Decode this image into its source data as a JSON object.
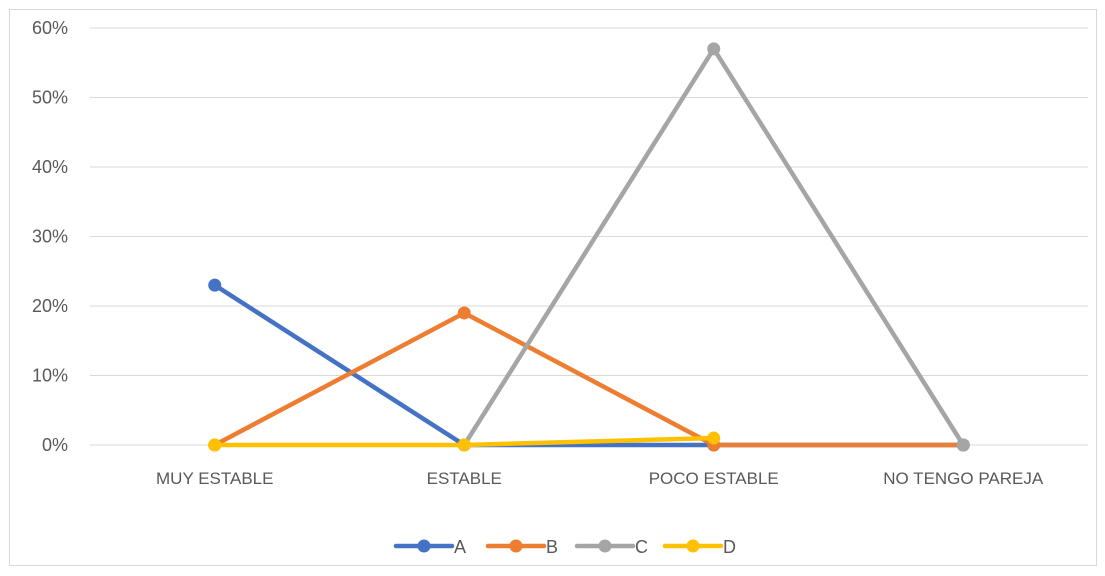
{
  "chart_data": {
    "type": "line",
    "categories": [
      "MUY ESTABLE",
      "ESTABLE",
      "POCO ESTABLE",
      "NO TENGO PAREJA"
    ],
    "series": [
      {
        "name": "A",
        "color": "#4472C4",
        "values": [
          23,
          0,
          0,
          0
        ]
      },
      {
        "name": "B",
        "color": "#ED7D31",
        "values": [
          0,
          19,
          0,
          0
        ]
      },
      {
        "name": "C",
        "color": "#A5A5A5",
        "values": [
          null,
          0,
          57,
          0
        ]
      },
      {
        "name": "D",
        "color": "#FFC000",
        "values": [
          0,
          0,
          1,
          null
        ]
      }
    ],
    "ylim": [
      0,
      60
    ],
    "yticks": [
      "0%",
      "10%",
      "20%",
      "30%",
      "40%",
      "50%",
      "60%"
    ],
    "y_unit": "percent",
    "grid": "horizontal",
    "legend_position": "bottom"
  }
}
